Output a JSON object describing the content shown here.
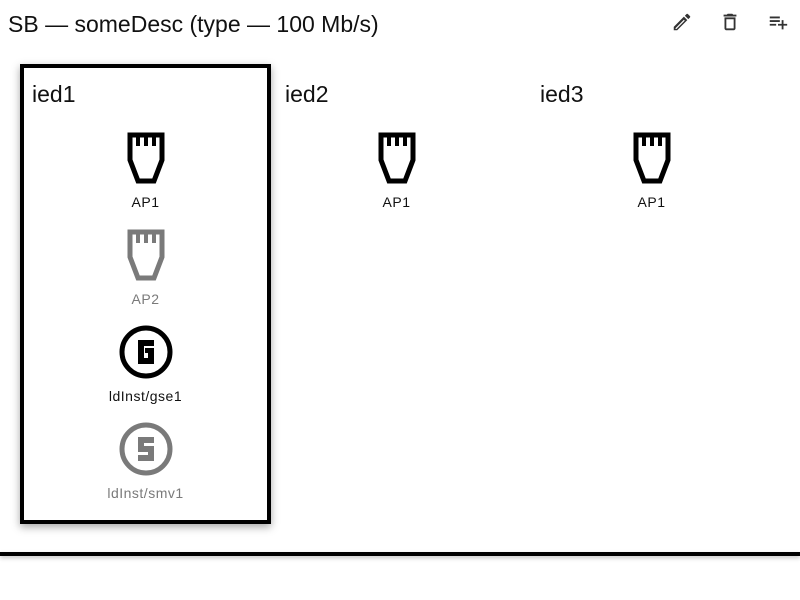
{
  "header": {
    "title": "SB — someDesc (type — 100 Mb/s)",
    "actions": [
      {
        "id": "edit",
        "icon": "edit-icon"
      },
      {
        "id": "delete",
        "icon": "delete-icon"
      },
      {
        "id": "add",
        "icon": "playlist-add-icon"
      }
    ]
  },
  "ieds": [
    {
      "name": "ied1",
      "selected": true,
      "items": [
        {
          "label": "AP1",
          "icon": "ethernet-port-icon",
          "dim": false
        },
        {
          "label": "AP2",
          "icon": "ethernet-port-icon",
          "dim": true
        },
        {
          "label": "ldInst/gse1",
          "icon": "gse-icon",
          "dim": false
        },
        {
          "label": "ldInst/smv1",
          "icon": "smv-icon",
          "dim": true
        }
      ]
    },
    {
      "name": "ied2",
      "selected": false,
      "items": [
        {
          "label": "AP1",
          "icon": "ethernet-port-icon",
          "dim": false
        }
      ]
    },
    {
      "name": "ied3",
      "selected": false,
      "items": [
        {
          "label": "AP1",
          "icon": "ethernet-port-icon",
          "dim": false
        }
      ]
    }
  ],
  "colors": {
    "ink": "#000000",
    "dim": "#7a7a7a",
    "icon_gray": "#333333"
  }
}
